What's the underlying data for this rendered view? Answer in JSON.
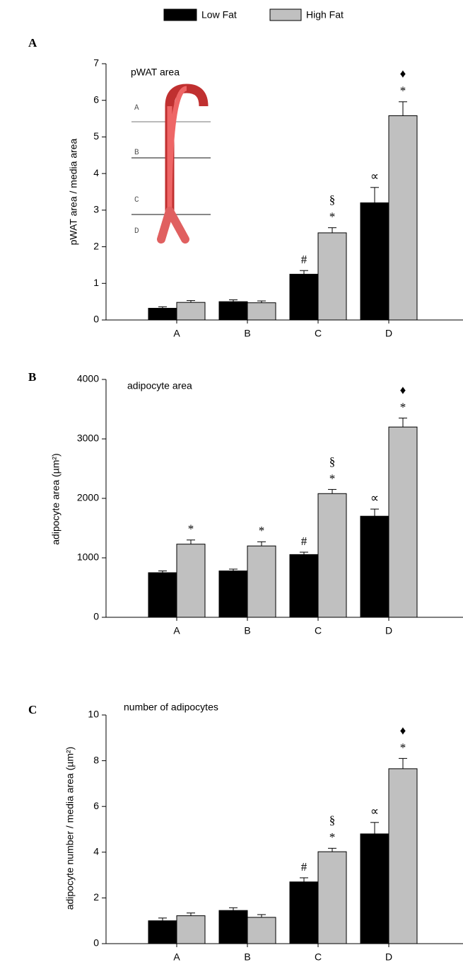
{
  "chart_data": [
    {
      "type": "bar",
      "panel": "A",
      "title": "pWAT area",
      "y_label": "pWAT area / media area",
      "categories": [
        "A",
        "B",
        "C",
        "D"
      ],
      "series": [
        {
          "name": "Low Fat",
          "color": "#000000",
          "values": [
            0.32,
            0.5,
            1.25,
            3.2
          ],
          "errors": [
            0.04,
            0.05,
            0.1,
            0.42
          ],
          "annotations": [
            null,
            null,
            [
              "#"
            ],
            [
              "∝"
            ]
          ]
        },
        {
          "name": "High Fat",
          "color": "#c0c0c0",
          "values": [
            0.48,
            0.47,
            2.38,
            5.58
          ],
          "errors": [
            0.05,
            0.05,
            0.14,
            0.38
          ],
          "annotations": [
            null,
            null,
            [
              "§",
              "*"
            ],
            [
              "♦",
              "*"
            ]
          ]
        }
      ],
      "ylim": [
        0,
        7
      ],
      "yticks": [
        0,
        1,
        2,
        3,
        4,
        5,
        6,
        7
      ],
      "inset_labels": [
        "A",
        "B",
        "C",
        "D"
      ]
    },
    {
      "type": "bar",
      "panel": "B",
      "title": "adipocyte area",
      "y_label": "adipocyte area (µm²)",
      "categories": [
        "A",
        "B",
        "C",
        "D"
      ],
      "series": [
        {
          "color": "#000000",
          "values": [
            750,
            780,
            1055,
            1700
          ],
          "errors": [
            30,
            30,
            40,
            120
          ],
          "annotations": [
            null,
            null,
            [
              "#"
            ],
            [
              "∝"
            ]
          ]
        },
        {
          "color": "#c0c0c0",
          "values": [
            1230,
            1200,
            2080,
            3200
          ],
          "errors": [
            70,
            70,
            70,
            150
          ],
          "annotations": [
            [
              "*"
            ],
            [
              "*"
            ],
            [
              "§",
              "*"
            ],
            [
              "♦",
              "*"
            ]
          ]
        }
      ],
      "ylim": [
        0,
        4000
      ],
      "yticks": [
        0,
        1000,
        2000,
        3000,
        4000
      ]
    },
    {
      "type": "bar",
      "panel": "C",
      "title": "number of adipocytes",
      "y_label": "adipocyte number / media area (µm²)",
      "categories": [
        "A",
        "B",
        "C",
        "D"
      ],
      "series": [
        {
          "color": "#000000",
          "values": [
            1.0,
            1.45,
            2.7,
            4.8
          ],
          "errors": [
            0.12,
            0.12,
            0.18,
            0.5
          ],
          "annotations": [
            null,
            null,
            [
              "#"
            ],
            [
              "∝"
            ]
          ]
        },
        {
          "color": "#c0c0c0",
          "values": [
            1.22,
            1.15,
            4.02,
            7.65
          ],
          "errors": [
            0.12,
            0.12,
            0.15,
            0.45
          ],
          "annotations": [
            null,
            null,
            [
              "§",
              "*"
            ],
            [
              "♦",
              "*"
            ]
          ]
        }
      ],
      "ylim": [
        0,
        10
      ],
      "yticks": [
        0,
        2,
        4,
        6,
        8,
        10
      ]
    }
  ]
}
